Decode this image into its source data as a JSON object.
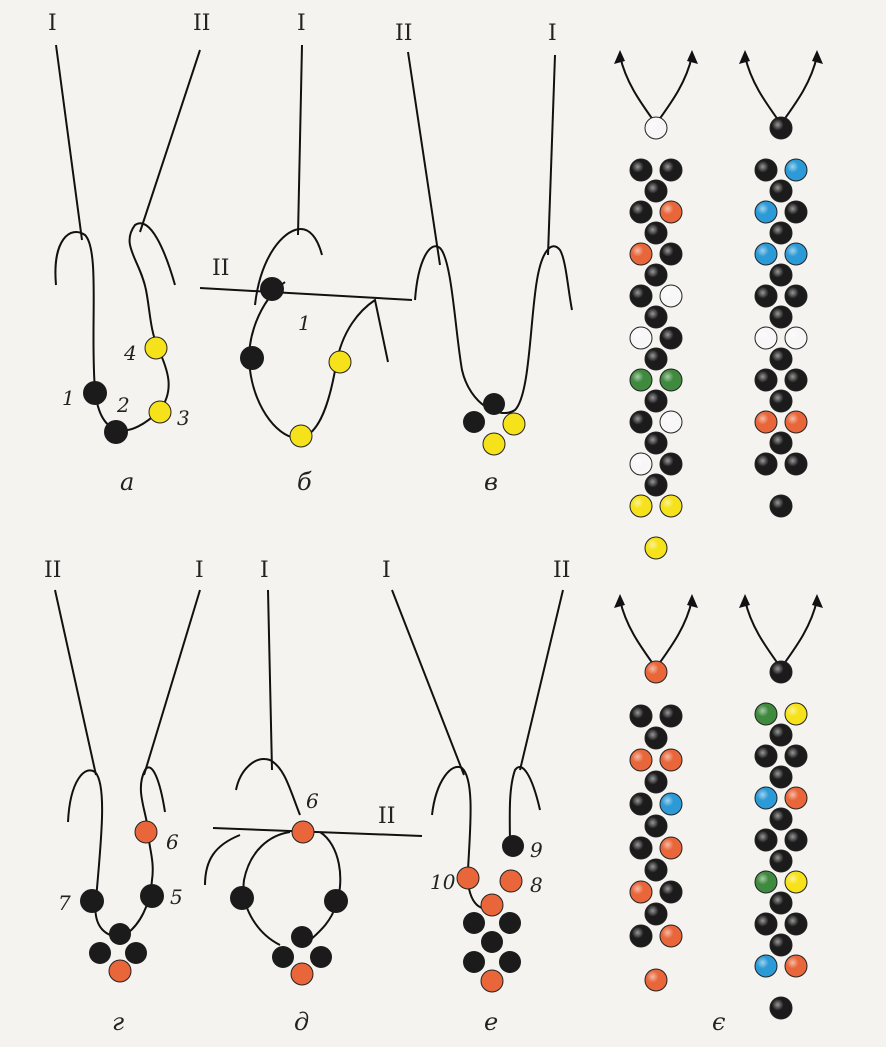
{
  "palette": {
    "black": "#1b1b1b",
    "yellow": "#f6e21a",
    "orange": "#e8663a",
    "white": "#f7f7f7",
    "green": "#3f8a3e",
    "blue": "#2c9ad6",
    "thread": "#111111",
    "background": "#f4f3ef"
  },
  "needle_labels": {
    "one": "I",
    "two": "II"
  },
  "panels": {
    "a": {
      "caption": "а",
      "n1": "1",
      "n2": "2",
      "n3": "3",
      "n4": "4"
    },
    "b": {
      "caption": "б",
      "n1": "1"
    },
    "v": {
      "caption": "в"
    },
    "g": {
      "caption": "г",
      "n5": "5",
      "n6": "6",
      "n7": "7"
    },
    "d": {
      "caption": "д",
      "n6": "6"
    },
    "e": {
      "caption": "е",
      "n8": "8",
      "n9": "9",
      "n10": "10"
    },
    "ye": {
      "caption": "є"
    }
  },
  "chains": {
    "top_left": [
      "white",
      "black",
      "black",
      "black",
      "orange",
      "orange",
      "black",
      "black",
      "white",
      "white",
      "black",
      "green",
      "green",
      "black",
      "white",
      "white",
      "black",
      "yellow",
      "yellow"
    ],
    "top_right": [
      "black",
      "black",
      "blue",
      "blue",
      "black",
      "blue",
      "blue",
      "black",
      "black",
      "white",
      "white",
      "black",
      "black",
      "orange",
      "orange",
      "black",
      "black"
    ],
    "bottom_left": [
      "orange",
      "black",
      "black",
      "orange",
      "orange",
      "black",
      "blue",
      "black",
      "orange",
      "orange",
      "black",
      "black",
      "orange",
      "orange"
    ],
    "bottom_right": [
      "black",
      "green",
      "yellow",
      "black",
      "black",
      "blue",
      "orange",
      "black",
      "black",
      "green",
      "yellow",
      "black",
      "black",
      "blue",
      "orange",
      "black"
    ]
  }
}
